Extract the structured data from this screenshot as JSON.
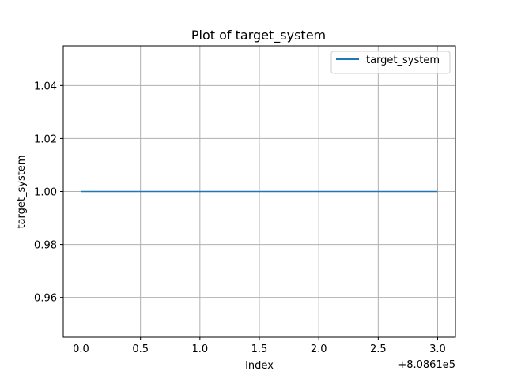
{
  "chart_data": {
    "type": "line",
    "title": "Plot of target_system",
    "xlabel": "Index",
    "ylabel": "target_system",
    "x_offset_label": "+8.0861e5",
    "x_ticks": [
      "0.0",
      "0.5",
      "1.0",
      "1.5",
      "2.0",
      "2.5",
      "3.0"
    ],
    "y_ticks": [
      "0.96",
      "0.98",
      "1.00",
      "1.02",
      "1.04"
    ],
    "xlim": [
      808610.0,
      808613.0
    ],
    "ylim": [
      0.945,
      1.055
    ],
    "grid": true,
    "legend_position": "top-right",
    "series": [
      {
        "name": "target_system",
        "color": "#1f77b4",
        "x": [
          808610,
          808611,
          808612,
          808613
        ],
        "y": [
          1,
          1,
          1,
          1
        ]
      }
    ]
  }
}
